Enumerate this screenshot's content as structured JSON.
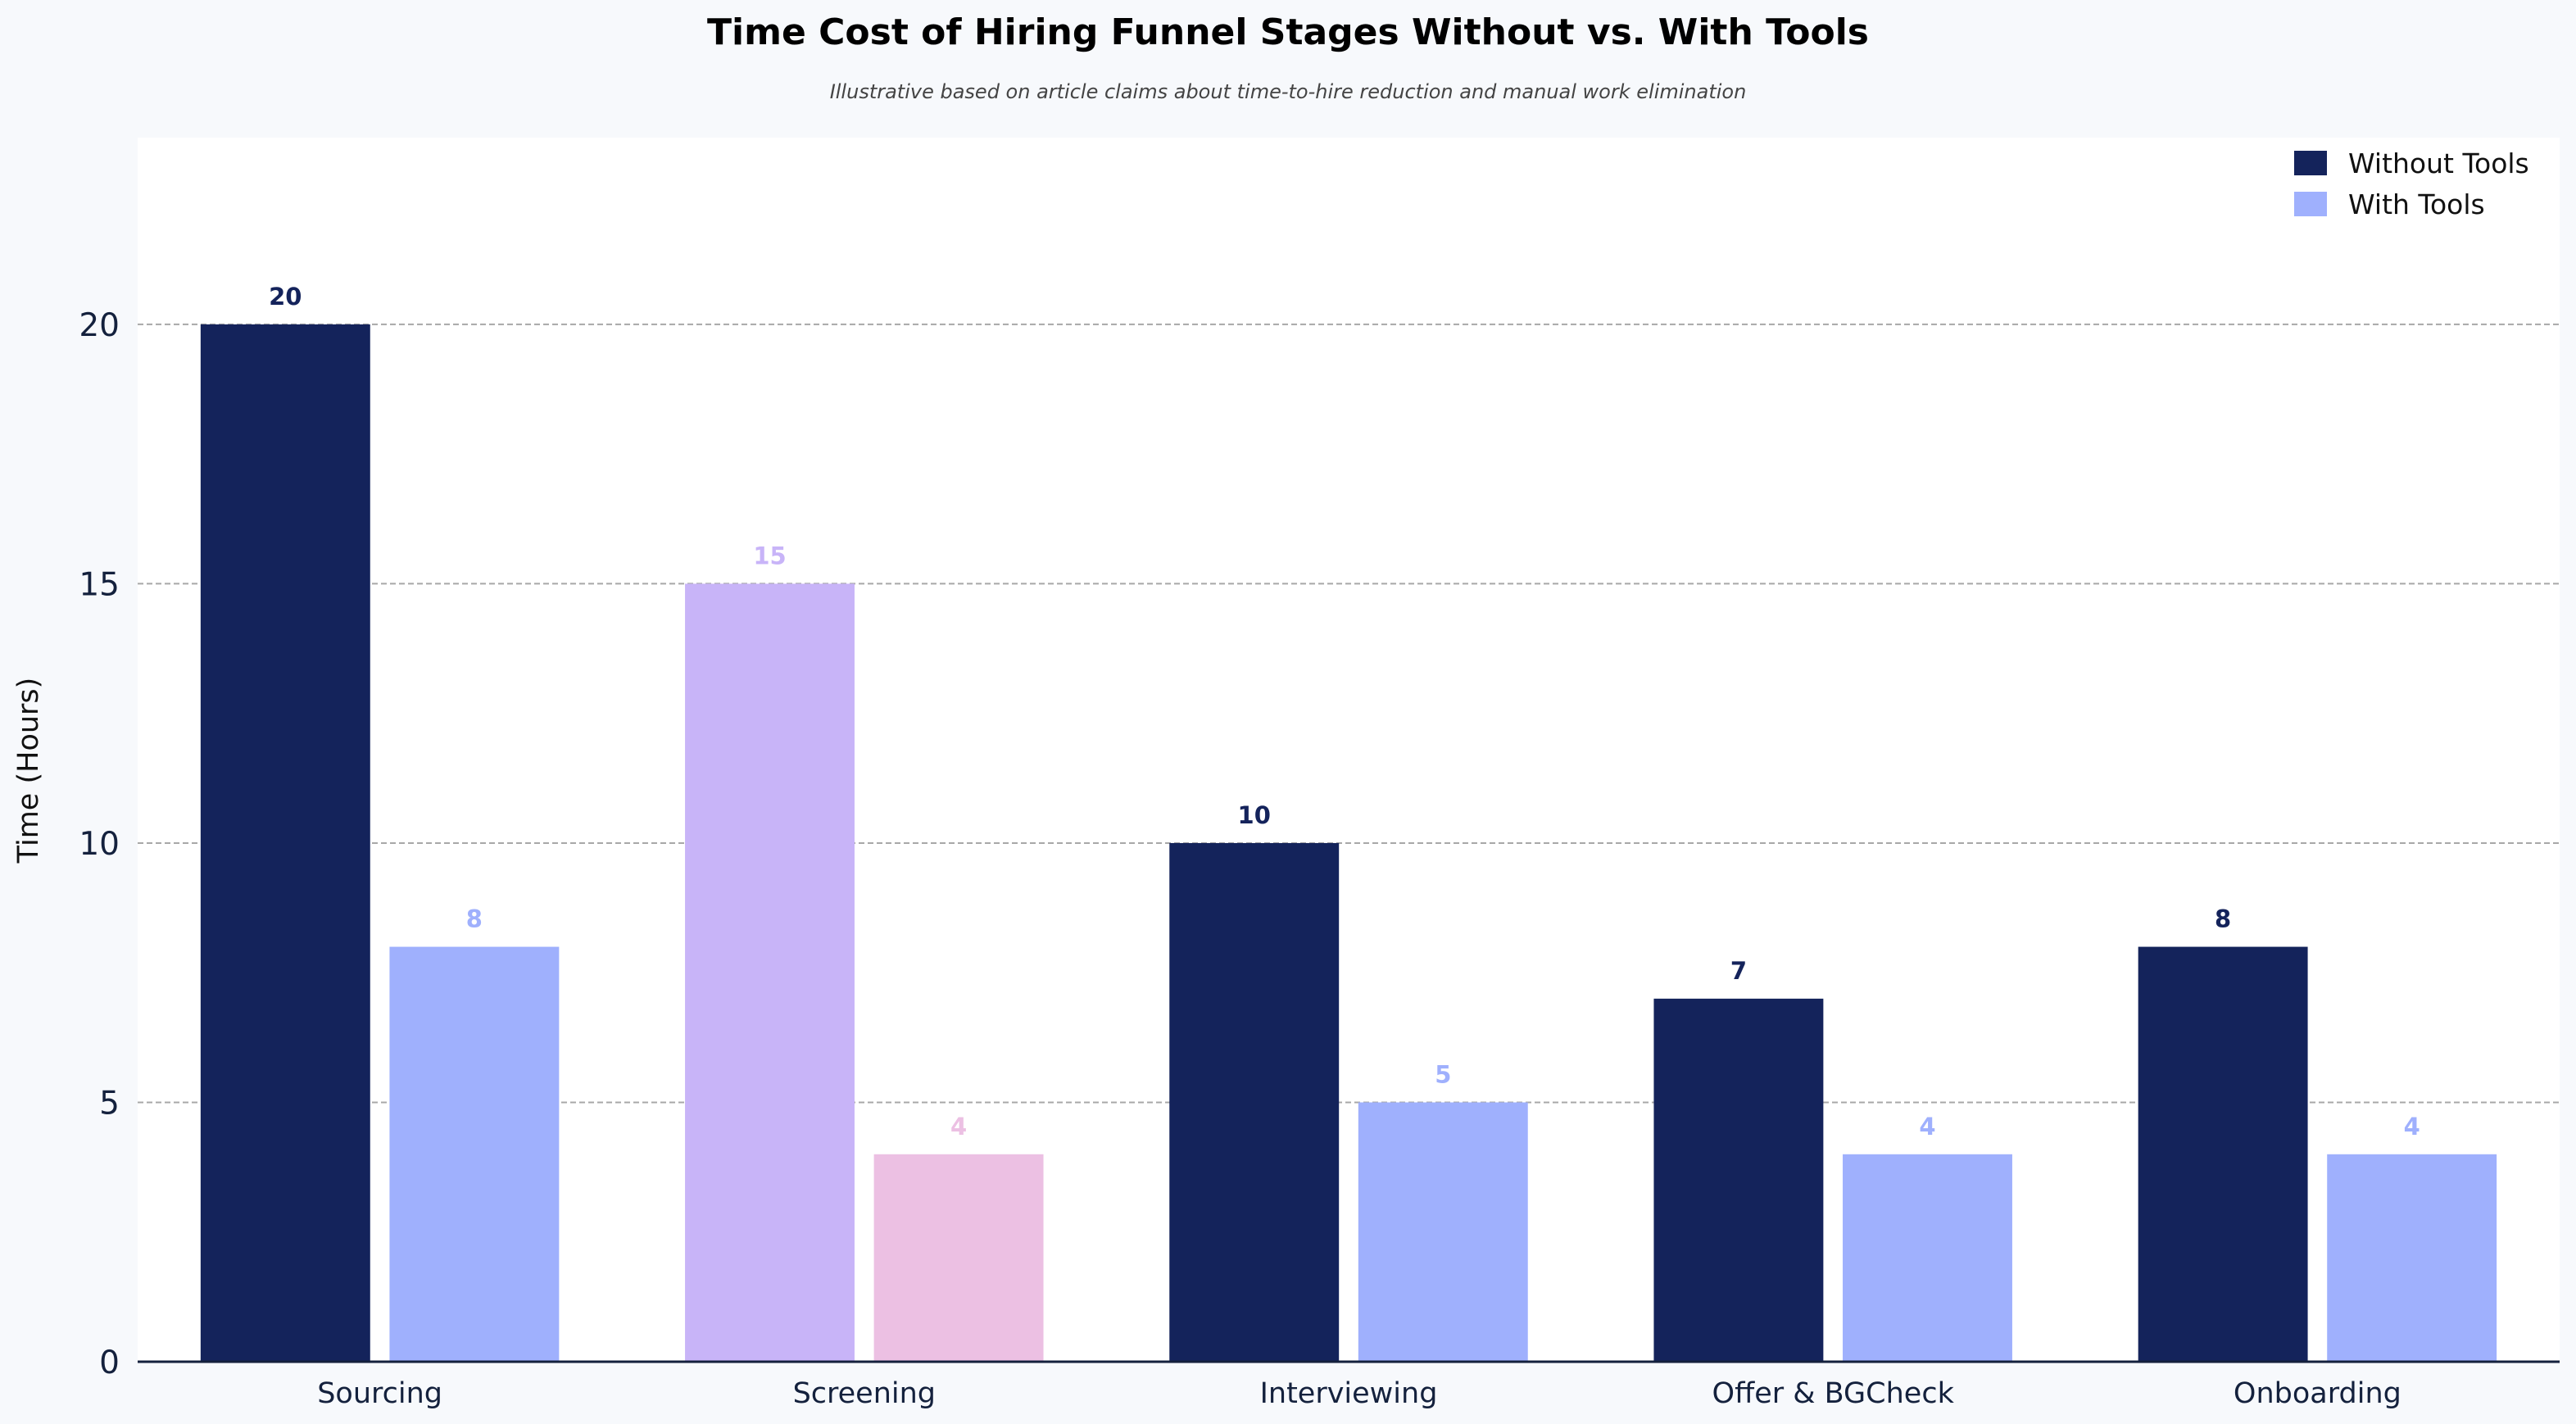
{
  "chart_data": {
    "type": "bar",
    "title": "Time Cost of Hiring Funnel Stages Without vs. With Tools",
    "subtitle": "Illustrative based on article claims about time-to-hire reduction and manual work elimination",
    "xlabel": "",
    "ylabel": "Time (Hours)",
    "ylim": [
      0,
      23.6
    ],
    "yticks": [
      0,
      5,
      10,
      15,
      20
    ],
    "grid": "horizontal dashed",
    "legend_position": "top-right",
    "categories": [
      "Sourcing",
      "Screening",
      "Interviewing",
      "Offer & BGCheck",
      "Onboarding"
    ],
    "series": [
      {
        "name": "Without Tools",
        "color": "#14235b",
        "values": [
          20,
          15,
          10,
          7,
          8
        ],
        "bar_colors": [
          "#14235b",
          "#c8b4f8",
          "#14235b",
          "#14235b",
          "#14235b"
        ]
      },
      {
        "name": "With Tools",
        "color": "#9fb0fd",
        "values": [
          8,
          4,
          5,
          4,
          4
        ],
        "bar_colors": [
          "#9fb0fd",
          "#ecc0e3",
          "#9fb0fd",
          "#9fb0fd",
          "#9fb0fd"
        ]
      }
    ],
    "colors": {
      "background": "#f7f9fc",
      "plot_background": "#ffffff",
      "axis": "#14213d"
    }
  }
}
